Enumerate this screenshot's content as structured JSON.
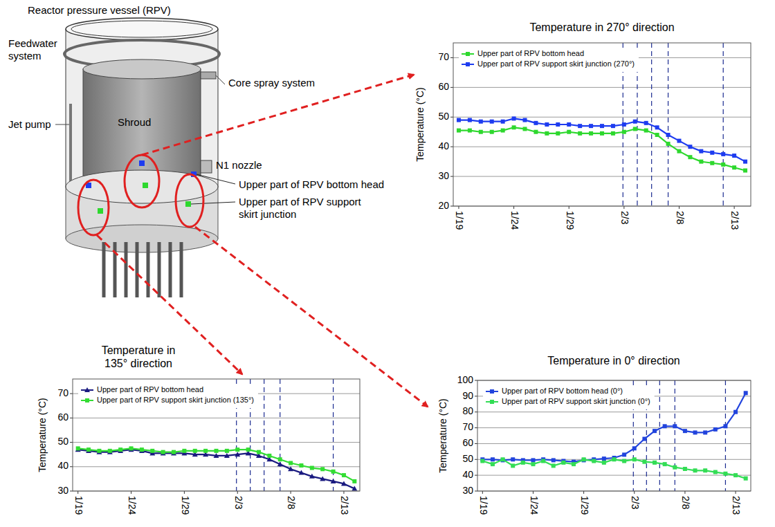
{
  "diagram": {
    "labels": [
      "Reactor pressure vessel (RPV)",
      "Feedwater system",
      "Core spray system",
      "Jet pump",
      "Shroud",
      "N1 nozzle",
      "Upper part of RPV bottom head",
      "Upper part of RPV support skirt junction"
    ]
  },
  "chart_data": [
    {
      "type": "line",
      "title": "Temperature in 270° direction",
      "ylabel": "Temperature (°C)",
      "x": [
        19,
        20,
        21,
        22,
        23,
        24,
        25,
        26,
        27,
        28,
        29,
        30,
        31,
        32,
        33,
        34,
        35,
        36,
        37,
        38,
        39,
        40,
        41,
        42,
        43,
        44,
        45
      ],
      "xlim": [
        18.5,
        45.5
      ],
      "xticks": [
        {
          "value": 19,
          "label": "1/19"
        },
        {
          "value": 24,
          "label": "1/24"
        },
        {
          "value": 29,
          "label": "1/29"
        },
        {
          "value": 34,
          "label": "2/3"
        },
        {
          "value": 39,
          "label": "2/8"
        },
        {
          "value": 44,
          "label": "2/13"
        }
      ],
      "ylim": [
        20,
        75
      ],
      "yticks": [
        20,
        30,
        40,
        50,
        60,
        70
      ],
      "grid": true,
      "legend": "upper left",
      "vlines": [
        33.9,
        35.2,
        36.5,
        38.0,
        43.0
      ],
      "series": [
        {
          "name": "Upper part of RPV bottom head",
          "color": "#2ed82e",
          "marker": "square",
          "values": [
            45.5,
            45.5,
            45,
            45,
            45.5,
            46.5,
            46,
            45,
            44.5,
            44.5,
            45,
            44.5,
            44.5,
            44.5,
            44.5,
            45,
            46,
            45.5,
            44,
            41,
            38.5,
            36.5,
            35,
            34.5,
            34,
            33,
            32
          ]
        },
        {
          "name": "Upper part of RPV support skirt junction (270°)",
          "color": "#1e3cf0",
          "marker": "square",
          "values": [
            49,
            49,
            48.5,
            48.5,
            48.5,
            49.5,
            49,
            48,
            47.5,
            47.5,
            47.5,
            47,
            47,
            47,
            47,
            47.5,
            48.5,
            48,
            46.5,
            44,
            42,
            40,
            38.5,
            38,
            37.5,
            37,
            35
          ]
        }
      ]
    },
    {
      "type": "line",
      "title": "Temperature in 135° direction",
      "ylabel": "Temperature (°C)",
      "x": [
        19,
        20,
        21,
        22,
        23,
        24,
        25,
        26,
        27,
        28,
        29,
        30,
        31,
        32,
        33,
        34,
        35,
        36,
        37,
        38,
        39,
        40,
        41,
        42,
        43,
        44,
        45
      ],
      "xlim": [
        18.5,
        45.5
      ],
      "xticks": [
        {
          "value": 19,
          "label": "1/19"
        },
        {
          "value": 24,
          "label": "1/24"
        },
        {
          "value": 29,
          "label": "1/29"
        },
        {
          "value": 34,
          "label": "2/3"
        },
        {
          "value": 39,
          "label": "2/8"
        },
        {
          "value": 44,
          "label": "2/13"
        }
      ],
      "ylim": [
        30,
        76
      ],
      "yticks": [
        30,
        40,
        50,
        60,
        70
      ],
      "grid": true,
      "legend": "upper left",
      "vlines": [
        33.9,
        35.2,
        36.5,
        38.0,
        43.0
      ],
      "series": [
        {
          "name": "Upper part of RPV bottom head",
          "color": "#1a1a80",
          "marker": "triangle",
          "values": [
            47,
            46.5,
            46,
            46,
            46.5,
            47,
            46.5,
            45.5,
            45.5,
            45.5,
            45.5,
            45,
            45,
            44.5,
            44.5,
            45,
            45.5,
            44.5,
            43,
            41,
            39,
            37.5,
            36,
            35,
            34,
            33,
            31
          ]
        },
        {
          "name": "Upper part of RPV support skirt junction (135°)",
          "color": "#33dd33",
          "marker": "square",
          "values": [
            47.5,
            47,
            46.5,
            46.5,
            47,
            47.5,
            47,
            46.5,
            46,
            46,
            46.5,
            46.5,
            46.5,
            46.5,
            46.5,
            47,
            47,
            46,
            44.5,
            43,
            41.5,
            40.5,
            39.5,
            39,
            38,
            36.5,
            34
          ]
        }
      ]
    },
    {
      "type": "line",
      "title": "Temperature in 0° direction",
      "ylabel": "Temperature (°C)",
      "x": [
        19,
        20,
        21,
        22,
        23,
        24,
        25,
        26,
        27,
        28,
        29,
        30,
        31,
        32,
        33,
        34,
        35,
        36,
        37,
        38,
        39,
        40,
        41,
        42,
        43,
        44,
        45
      ],
      "xlim": [
        18.5,
        45.5
      ],
      "xticks": [
        {
          "value": 19,
          "label": "1/19"
        },
        {
          "value": 24,
          "label": "1/24"
        },
        {
          "value": 29,
          "label": "1/29"
        },
        {
          "value": 34,
          "label": "2/3"
        },
        {
          "value": 39,
          "label": "2/8"
        },
        {
          "value": 44,
          "label": "2/13"
        }
      ],
      "ylim": [
        30,
        100
      ],
      "yticks": [
        30,
        40,
        50,
        60,
        70,
        80,
        90,
        100
      ],
      "grid": true,
      "legend": "upper left",
      "vlines": [
        33.9,
        35.2,
        36.5,
        38.0,
        43.0
      ],
      "series": [
        {
          "name": "Upper part of RPV bottom head (0°)",
          "color": "#2244dd",
          "marker": "square",
          "values": [
            50,
            50,
            49.5,
            50,
            49.5,
            49.5,
            50,
            49.5,
            49,
            48.5,
            49.5,
            50,
            50.5,
            51,
            53,
            57,
            63,
            68,
            71,
            71,
            68,
            67,
            67,
            69,
            71,
            80,
            92
          ]
        },
        {
          "name": "Upper part of RPV support skirt junction (0°)",
          "color": "#33dd55",
          "marker": "square",
          "values": [
            49,
            47,
            50,
            46,
            48,
            47,
            49,
            46,
            48,
            47,
            50,
            49,
            48,
            50,
            49,
            50,
            48.5,
            48,
            47,
            45,
            44,
            43,
            43,
            42,
            41,
            40,
            38
          ]
        }
      ]
    }
  ]
}
